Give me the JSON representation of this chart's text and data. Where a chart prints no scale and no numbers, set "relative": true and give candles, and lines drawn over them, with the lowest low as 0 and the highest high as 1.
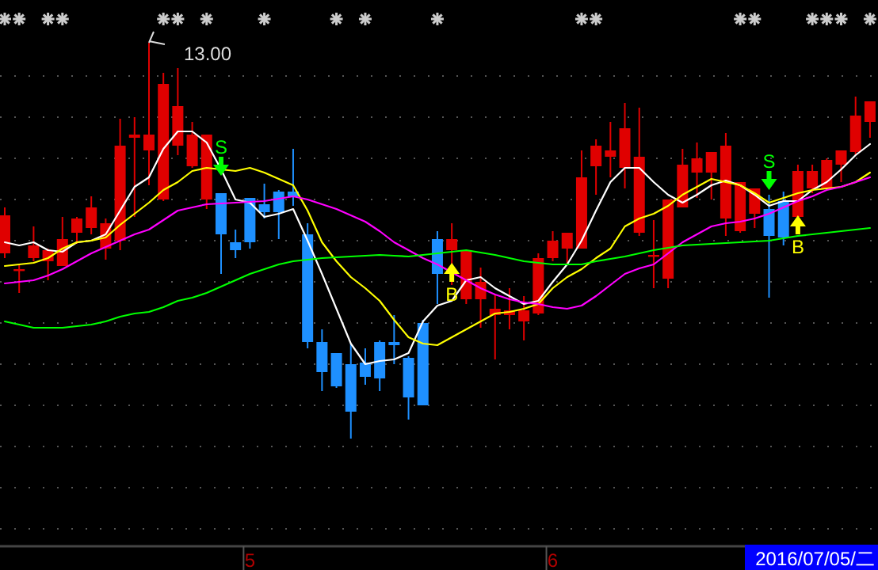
{
  "chart_data": {
    "type": "candlestick",
    "relative": true,
    "grid": true,
    "tick_labels": "x",
    "categories": [
      null,
      null,
      null,
      null,
      null,
      null,
      null,
      null,
      null,
      null,
      null,
      null,
      null,
      null,
      null,
      null,
      null,
      "5",
      null,
      null,
      null,
      null,
      null,
      null,
      null,
      null,
      null,
      null,
      null,
      null,
      null,
      null,
      null,
      null,
      null,
      null,
      null,
      null,
      "6",
      null,
      null,
      null,
      null,
      null,
      null,
      null,
      null,
      null,
      null,
      null,
      null,
      null,
      null,
      null,
      null,
      null,
      null,
      null,
      null,
      null,
      null
    ],
    "ohlc": [
      [
        0.468,
        0.584,
        0.456,
        0.564
      ],
      [
        0.424,
        0.44,
        0.368,
        0.428
      ],
      [
        0.456,
        0.536,
        0.448,
        0.488
      ],
      [
        0.448,
        0.48,
        0.4,
        0.476
      ],
      [
        0.436,
        0.56,
        0.436,
        0.504
      ],
      [
        0.52,
        0.56,
        0.492,
        0.556
      ],
      [
        0.532,
        0.612,
        0.516,
        0.584
      ],
      [
        0.48,
        0.556,
        0.452,
        0.544
      ],
      [
        0.5,
        0.808,
        0.476,
        0.74
      ],
      [
        0.76,
        0.812,
        0.56,
        0.768
      ],
      [
        0.728,
        1.0,
        0.64,
        0.768
      ],
      [
        0.604,
        0.924,
        0.6,
        0.896
      ],
      [
        0.74,
        0.936,
        0.716,
        0.84
      ],
      [
        0.688,
        0.8,
        0.684,
        0.768
      ],
      [
        0.604,
        0.768,
        0.58,
        0.768
      ],
      [
        0.62,
        0.62,
        0.416,
        0.516
      ],
      [
        0.496,
        0.528,
        0.456,
        0.476
      ],
      [
        0.608,
        0.608,
        0.48,
        0.496
      ],
      [
        0.592,
        0.644,
        0.556,
        0.572
      ],
      [
        0.624,
        0.628,
        0.504,
        0.572
      ],
      [
        0.624,
        0.732,
        0.588,
        0.612
      ],
      [
        0.516,
        0.544,
        0.228,
        0.244
      ],
      [
        0.244,
        0.276,
        0.12,
        0.168
      ],
      [
        0.216,
        0.216,
        0.128,
        0.132
      ],
      [
        0.188,
        0.24,
        0.0,
        0.068
      ],
      [
        0.192,
        0.228,
        0.136,
        0.156
      ],
      [
        0.244,
        0.248,
        0.12,
        0.152
      ],
      [
        0.244,
        0.312,
        0.188,
        0.236
      ],
      [
        0.204,
        0.208,
        0.048,
        0.104
      ],
      [
        0.292,
        0.3,
        0.084,
        0.084
      ],
      [
        0.504,
        0.524,
        0.34,
        0.416
      ],
      [
        0.476,
        0.544,
        0.388,
        0.504
      ],
      [
        0.352,
        0.476,
        0.34,
        0.476
      ],
      [
        0.352,
        0.432,
        0.28,
        0.396
      ],
      [
        0.312,
        0.364,
        0.2,
        0.328
      ],
      [
        0.312,
        0.38,
        0.276,
        0.324
      ],
      [
        0.296,
        0.36,
        0.248,
        0.324
      ],
      [
        0.316,
        0.468,
        0.312,
        0.456
      ],
      [
        0.456,
        0.524,
        0.448,
        0.5
      ],
      [
        0.48,
        0.52,
        0.44,
        0.52
      ],
      [
        0.48,
        0.728,
        0.48,
        0.66
      ],
      [
        0.688,
        0.756,
        0.616,
        0.74
      ],
      [
        0.712,
        0.8,
        0.66,
        0.728
      ],
      [
        0.684,
        0.848,
        0.632,
        0.784
      ],
      [
        0.52,
        0.836,
        0.512,
        0.712
      ],
      [
        0.46,
        0.552,
        0.38,
        0.464
      ],
      [
        0.404,
        0.604,
        0.38,
        0.604
      ],
      [
        0.584,
        0.732,
        0.584,
        0.692
      ],
      [
        0.672,
        0.748,
        0.608,
        0.708
      ],
      [
        0.672,
        0.724,
        0.604,
        0.724
      ],
      [
        0.556,
        0.772,
        0.512,
        0.74
      ],
      [
        0.524,
        0.648,
        0.52,
        0.648
      ],
      [
        0.568,
        0.632,
        0.532,
        0.632
      ],
      [
        0.58,
        0.616,
        0.356,
        0.512
      ],
      [
        0.6,
        0.624,
        0.488,
        0.508
      ],
      [
        0.56,
        0.692,
        0.56,
        0.676
      ],
      [
        0.632,
        0.692,
        0.62,
        0.676
      ],
      [
        0.632,
        0.708,
        0.628,
        0.704
      ],
      [
        0.692,
        0.728,
        0.648,
        0.728
      ],
      [
        0.724,
        0.864,
        0.716,
        0.816
      ],
      [
        0.8,
        0.852,
        0.76,
        0.852
      ]
    ],
    "colors": [
      "#e00000",
      "#e00000",
      "#e00000",
      "#e00000",
      "#e00000",
      "#e00000",
      "#e00000",
      "#e00000",
      "#e00000",
      "#e00000",
      "#e00000",
      "#e00000",
      "#e00000",
      "#e00000",
      "#e00000",
      "#1e90ff",
      "#1e90ff",
      "#1e90ff",
      "#1e90ff",
      "#1e90ff",
      "#1e90ff",
      "#1e90ff",
      "#1e90ff",
      "#1e90ff",
      "#1e90ff",
      "#1e90ff",
      "#1e90ff",
      "#1e90ff",
      "#1e90ff",
      "#1e90ff",
      "#1e90ff",
      "#e00000",
      "#e00000",
      "#e00000",
      "#e00000",
      "#e00000",
      "#e00000",
      "#e00000",
      "#e00000",
      "#e00000",
      "#e00000",
      "#e00000",
      "#e00000",
      "#e00000",
      "#e00000",
      "#e00000",
      "#e00000",
      "#e00000",
      "#e00000",
      "#e00000",
      "#e00000",
      "#e00000",
      "#e00000",
      "#1e90ff",
      "#1e90ff",
      "#e00000",
      "#e00000",
      "#e00000",
      "#e00000",
      "#e00000",
      "#e00000"
    ],
    "series": [
      {
        "type": "line",
        "color": "#ffffff",
        "values": [
          0.496,
          0.488,
          0.496,
          0.476,
          0.472,
          0.496,
          0.5,
          0.516,
          0.576,
          0.636,
          0.66,
          0.732,
          0.776,
          0.776,
          0.748,
          0.68,
          0.604,
          0.596,
          0.56,
          0.568,
          0.58,
          0.5,
          0.416,
          0.328,
          0.24,
          0.188,
          0.196,
          0.2,
          0.216,
          0.296,
          0.336,
          0.348,
          0.4,
          0.408,
          0.38,
          0.36,
          0.34,
          0.348,
          0.396,
          0.44,
          0.5,
          0.576,
          0.648,
          0.684,
          0.684,
          0.648,
          0.616,
          0.596,
          0.616,
          0.64,
          0.652,
          0.64,
          0.616,
          0.588,
          0.6,
          0.6,
          0.628,
          0.648,
          0.68,
          0.716,
          0.744
        ]
      },
      {
        "type": "line",
        "color": "#ffff00",
        "values": [
          0.436,
          0.44,
          0.444,
          0.456,
          0.48,
          0.496,
          0.5,
          0.508,
          0.54,
          0.568,
          0.596,
          0.628,
          0.648,
          0.676,
          0.684,
          0.68,
          0.676,
          0.684,
          0.672,
          0.656,
          0.64,
          0.576,
          0.496,
          0.448,
          0.408,
          0.38,
          0.348,
          0.3,
          0.256,
          0.24,
          0.236,
          0.256,
          0.276,
          0.296,
          0.316,
          0.32,
          0.328,
          0.34,
          0.38,
          0.408,
          0.428,
          0.456,
          0.48,
          0.536,
          0.556,
          0.568,
          0.588,
          0.616,
          0.636,
          0.656,
          0.648,
          0.64,
          0.62,
          0.596,
          0.608,
          0.62,
          0.628,
          0.632,
          0.636,
          0.648,
          0.672
        ]
      },
      {
        "type": "line",
        "color": "#ff00ff",
        "values": [
          0.392,
          0.396,
          0.4,
          0.412,
          0.428,
          0.448,
          0.468,
          0.484,
          0.5,
          0.516,
          0.528,
          0.552,
          0.576,
          0.584,
          0.592,
          0.594,
          0.596,
          0.598,
          0.6,
          0.606,
          0.612,
          0.604,
          0.592,
          0.58,
          0.564,
          0.548,
          0.524,
          0.496,
          0.476,
          0.456,
          0.44,
          0.42,
          0.4,
          0.38,
          0.364,
          0.352,
          0.344,
          0.34,
          0.332,
          0.328,
          0.336,
          0.36,
          0.388,
          0.416,
          0.43,
          0.44,
          0.468,
          0.496,
          0.516,
          0.536,
          0.544,
          0.548,
          0.556,
          0.568,
          0.584,
          0.6,
          0.612,
          0.628,
          0.636,
          0.648,
          0.66
        ]
      },
      {
        "type": "line",
        "color": "#00ff00",
        "values": [
          0.296,
          0.288,
          0.28,
          0.28,
          0.28,
          0.284,
          0.288,
          0.296,
          0.308,
          0.316,
          0.32,
          0.332,
          0.348,
          0.356,
          0.368,
          0.384,
          0.4,
          0.416,
          0.428,
          0.44,
          0.448,
          0.452,
          0.456,
          0.458,
          0.46,
          0.462,
          0.464,
          0.462,
          0.46,
          0.464,
          0.468,
          0.472,
          0.476,
          0.47,
          0.464,
          0.456,
          0.448,
          0.444,
          0.44,
          0.44,
          0.44,
          0.448,
          0.454,
          0.46,
          0.468,
          0.476,
          0.482,
          0.488,
          0.49,
          0.492,
          0.494,
          0.496,
          0.498,
          0.5,
          0.506,
          0.512,
          0.516,
          0.52,
          0.524,
          0.528,
          0.532
        ]
      },
      {
        "type": "scatter",
        "name": "S",
        "color": "#00ff00",
        "marker": "triangle",
        "values": [
          null,
          null,
          null,
          null,
          null,
          null,
          null,
          null,
          null,
          null,
          null,
          null,
          null,
          null,
          null,
          0.68,
          null,
          null,
          null,
          null,
          null,
          null,
          null,
          null,
          null,
          null,
          null,
          null,
          null,
          null,
          null,
          null,
          null,
          null,
          null,
          null,
          null,
          null,
          null,
          null,
          null,
          null,
          null,
          null,
          null,
          null,
          null,
          null,
          null,
          null,
          null,
          null,
          null,
          0.644,
          null,
          null,
          null,
          null,
          null,
          null,
          null
        ]
      },
      {
        "type": "scatter",
        "name": "B",
        "color": "#ffff00",
        "marker": "triangle",
        "values": [
          null,
          null,
          null,
          null,
          null,
          null,
          null,
          null,
          null,
          null,
          null,
          null,
          null,
          null,
          null,
          null,
          null,
          null,
          null,
          null,
          null,
          null,
          null,
          null,
          null,
          null,
          null,
          null,
          null,
          null,
          null,
          0.428,
          null,
          null,
          null,
          null,
          null,
          null,
          null,
          null,
          null,
          null,
          null,
          null,
          null,
          null,
          null,
          null,
          null,
          null,
          null,
          null,
          null,
          null,
          null,
          0.548,
          null,
          null,
          null,
          null,
          null
        ]
      }
    ],
    "annotations": [
      "13.00",
      "2016/07/05/二"
    ]
  }
}
